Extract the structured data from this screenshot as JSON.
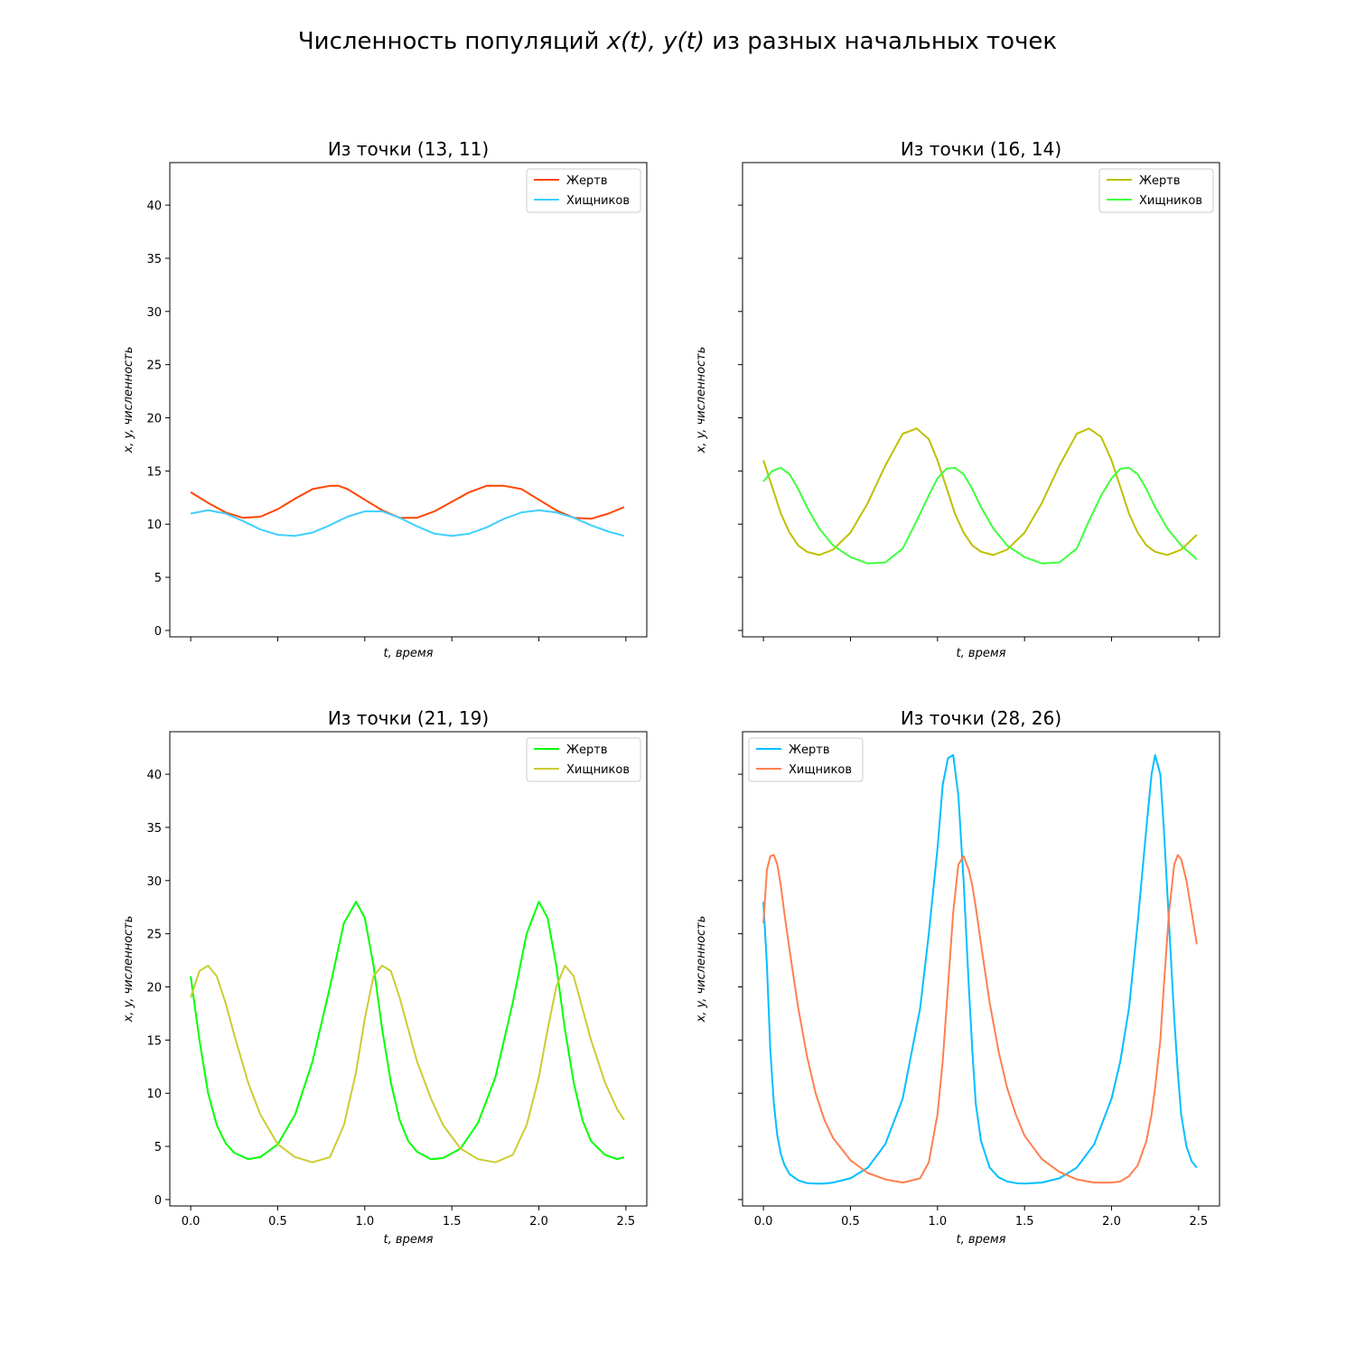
{
  "figure": {
    "title_prefix": "Численность популяций ",
    "title_math": "x(t), y(t)",
    "title_suffix": " из разных начальных точек"
  },
  "chart_data": [
    {
      "type": "line",
      "title": "Из точки (13, 11)",
      "xlabel": "t, время",
      "ylabel": "x, y, численность",
      "xlim": [
        -0.12,
        2.62
      ],
      "ylim": [
        -0.6,
        44
      ],
      "xticks": [
        "0.0",
        "0.5",
        "1.0",
        "1.5",
        "2.0",
        "2.5"
      ],
      "yticks": [
        "0",
        "5",
        "10",
        "15",
        "20",
        "25",
        "30",
        "35",
        "40"
      ],
      "show_xtick_labels": false,
      "show_ytick_labels": true,
      "legend": "top-right",
      "x": [
        0.0,
        0.1,
        0.2,
        0.3,
        0.4,
        0.5,
        0.6,
        0.7,
        0.8,
        0.85,
        0.9,
        1.0,
        1.1,
        1.2,
        1.3,
        1.4,
        1.5,
        1.6,
        1.7,
        1.8,
        1.9,
        2.0,
        2.1,
        2.2,
        2.3,
        2.4,
        2.49
      ],
      "series": [
        {
          "name": "Жертв",
          "color": "#ff4500",
          "values": [
            13.0,
            12.0,
            11.1,
            10.6,
            10.7,
            11.4,
            12.4,
            13.3,
            13.6,
            13.6,
            13.3,
            12.3,
            11.3,
            10.6,
            10.6,
            11.2,
            12.1,
            13.0,
            13.6,
            13.6,
            13.3,
            12.3,
            11.3,
            10.6,
            10.5,
            11.0,
            11.6
          ]
        },
        {
          "name": "Хищников",
          "color": "#40cfff",
          "values": [
            11.0,
            11.3,
            11.0,
            10.3,
            9.5,
            9.0,
            8.9,
            9.2,
            9.9,
            10.3,
            10.7,
            11.2,
            11.2,
            10.6,
            9.8,
            9.1,
            8.9,
            9.1,
            9.7,
            10.5,
            11.1,
            11.3,
            11.1,
            10.6,
            9.9,
            9.3,
            8.9
          ]
        }
      ]
    },
    {
      "type": "line",
      "title": "Из точки (16, 14)",
      "xlabel": "t, время",
      "ylabel": "x, y, численность",
      "xlim": [
        -0.12,
        2.62
      ],
      "ylim": [
        -0.6,
        44
      ],
      "xticks": [
        "0.0",
        "0.5",
        "1.0",
        "1.5",
        "2.0",
        "2.5"
      ],
      "yticks": [
        "0",
        "5",
        "10",
        "15",
        "20",
        "25",
        "30",
        "35",
        "40"
      ],
      "show_xtick_labels": false,
      "show_ytick_labels": false,
      "legend": "top-right",
      "x": [
        0.0,
        0.05,
        0.1,
        0.15,
        0.2,
        0.25,
        0.32,
        0.4,
        0.5,
        0.6,
        0.7,
        0.8,
        0.88,
        0.95,
        1.0,
        1.05,
        1.1,
        1.15,
        1.2,
        1.25,
        1.32,
        1.4,
        1.5,
        1.6,
        1.7,
        1.8,
        1.87,
        1.94,
        2.0,
        2.05,
        2.1,
        2.15,
        2.2,
        2.25,
        2.32,
        2.4,
        2.49
      ],
      "series": [
        {
          "name": "Жертв",
          "color": "#bfbf00",
          "values": [
            16.0,
            13.5,
            11.0,
            9.2,
            8.0,
            7.4,
            7.1,
            7.6,
            9.2,
            12.0,
            15.5,
            18.5,
            19.0,
            18.0,
            16.0,
            13.5,
            11.0,
            9.2,
            8.0,
            7.4,
            7.1,
            7.6,
            9.2,
            12.0,
            15.5,
            18.5,
            19.0,
            18.2,
            16.0,
            13.5,
            11.0,
            9.2,
            8.0,
            7.4,
            7.1,
            7.6,
            9.0
          ]
        },
        {
          "name": "Хищников",
          "color": "#3fff3f",
          "values": [
            14.0,
            15.0,
            15.3,
            14.7,
            13.3,
            11.6,
            9.6,
            8.0,
            6.9,
            6.3,
            6.4,
            7.7,
            10.3,
            12.7,
            14.3,
            15.2,
            15.3,
            14.7,
            13.3,
            11.6,
            9.6,
            8.0,
            6.9,
            6.3,
            6.4,
            7.7,
            10.3,
            12.7,
            14.3,
            15.2,
            15.3,
            14.7,
            13.3,
            11.6,
            9.6,
            8.0,
            6.7
          ]
        }
      ]
    },
    {
      "type": "line",
      "title": "Из точки (21, 19)",
      "xlabel": "t, время",
      "ylabel": "x, y, численность",
      "xlim": [
        -0.12,
        2.62
      ],
      "ylim": [
        -0.6,
        44
      ],
      "xticks": [
        "0.0",
        "0.5",
        "1.0",
        "1.5",
        "2.0",
        "2.5"
      ],
      "yticks": [
        "0",
        "5",
        "10",
        "15",
        "20",
        "25",
        "30",
        "35",
        "40"
      ],
      "show_xtick_labels": true,
      "show_ytick_labels": true,
      "legend": "top-right",
      "x": [
        0.0,
        0.05,
        0.1,
        0.15,
        0.2,
        0.25,
        0.33,
        0.4,
        0.5,
        0.6,
        0.7,
        0.8,
        0.88,
        0.95,
        1.0,
        1.05,
        1.1,
        1.15,
        1.2,
        1.25,
        1.3,
        1.38,
        1.45,
        1.55,
        1.65,
        1.75,
        1.85,
        1.93,
        2.0,
        2.05,
        2.1,
        2.15,
        2.2,
        2.25,
        2.3,
        2.38,
        2.45,
        2.49
      ],
      "series": [
        {
          "name": "Жертв",
          "color": "#00ff00",
          "values": [
            21.0,
            15.0,
            10.0,
            7.0,
            5.3,
            4.4,
            3.8,
            4.0,
            5.2,
            8.0,
            13.0,
            20.0,
            26.0,
            28.0,
            26.5,
            22.0,
            16.0,
            11.0,
            7.5,
            5.5,
            4.5,
            3.8,
            3.9,
            4.8,
            7.2,
            11.5,
            18.5,
            25.0,
            28.0,
            26.5,
            22.0,
            16.0,
            11.0,
            7.5,
            5.5,
            4.2,
            3.8,
            4.0
          ]
        },
        {
          "name": "Хищников",
          "color": "#cccc33",
          "values": [
            19.0,
            21.5,
            22.0,
            21.0,
            18.5,
            15.5,
            11.0,
            8.0,
            5.2,
            4.0,
            3.5,
            4.0,
            7.0,
            12.0,
            17.0,
            21.0,
            22.0,
            21.5,
            19.0,
            16.0,
            13.0,
            9.5,
            7.0,
            4.8,
            3.8,
            3.5,
            4.2,
            7.0,
            11.5,
            16.0,
            20.0,
            22.0,
            21.0,
            18.0,
            15.0,
            11.0,
            8.5,
            7.5
          ]
        }
      ]
    },
    {
      "type": "line",
      "title": "Из точки (28, 26)",
      "xlabel": "t, время",
      "ylabel": "x, y, численность",
      "xlim": [
        -0.12,
        2.62
      ],
      "ylim": [
        -0.6,
        44
      ],
      "xticks": [
        "0.0",
        "0.5",
        "1.0",
        "1.5",
        "2.0",
        "2.5"
      ],
      "yticks": [
        "0",
        "5",
        "10",
        "15",
        "20",
        "25",
        "30",
        "35",
        "40"
      ],
      "show_xtick_labels": true,
      "show_ytick_labels": false,
      "legend": "top-left",
      "x": [
        0.0,
        0.02,
        0.04,
        0.06,
        0.08,
        0.1,
        0.12,
        0.15,
        0.2,
        0.25,
        0.3,
        0.35,
        0.4,
        0.5,
        0.6,
        0.7,
        0.8,
        0.9,
        0.95,
        1.0,
        1.03,
        1.06,
        1.09,
        1.12,
        1.15,
        1.18,
        1.2,
        1.22,
        1.25,
        1.3,
        1.35,
        1.4,
        1.45,
        1.5,
        1.6,
        1.7,
        1.8,
        1.9,
        2.0,
        2.05,
        2.1,
        2.15,
        2.2,
        2.23,
        2.25,
        2.28,
        2.3,
        2.33,
        2.36,
        2.38,
        2.4,
        2.43,
        2.46,
        2.49
      ],
      "series": [
        {
          "name": "Жертв",
          "color": "#00bfff",
          "values": [
            28.0,
            22.0,
            14.0,
            9.0,
            6.0,
            4.3,
            3.3,
            2.4,
            1.8,
            1.55,
            1.5,
            1.5,
            1.6,
            2.0,
            3.0,
            5.2,
            9.5,
            18.0,
            25.0,
            33.0,
            39.0,
            41.5,
            41.8,
            38.0,
            30.0,
            20.0,
            14.0,
            9.0,
            5.5,
            3.0,
            2.1,
            1.7,
            1.55,
            1.5,
            1.6,
            2.0,
            3.0,
            5.2,
            9.5,
            13.0,
            18.0,
            26.0,
            35.0,
            40.0,
            41.8,
            40.0,
            35.0,
            26.0,
            17.0,
            12.0,
            8.0,
            5.0,
            3.6,
            3.0
          ]
        },
        {
          "name": "Хищников",
          "color": "#ff7f50",
          "values": [
            26.0,
            31.0,
            32.3,
            32.4,
            31.5,
            29.5,
            27.0,
            23.5,
            18.0,
            13.5,
            10.0,
            7.5,
            5.8,
            3.7,
            2.5,
            1.9,
            1.6,
            2.0,
            3.5,
            8.0,
            13.0,
            20.0,
            27.0,
            31.5,
            32.3,
            31.0,
            29.5,
            27.5,
            24.0,
            18.5,
            14.0,
            10.5,
            8.0,
            6.0,
            3.8,
            2.6,
            1.9,
            1.6,
            1.6,
            1.7,
            2.2,
            3.2,
            5.5,
            8.0,
            10.5,
            15.0,
            20.0,
            27.0,
            31.5,
            32.4,
            32.0,
            30.0,
            27.0,
            24.0
          ]
        }
      ]
    }
  ]
}
